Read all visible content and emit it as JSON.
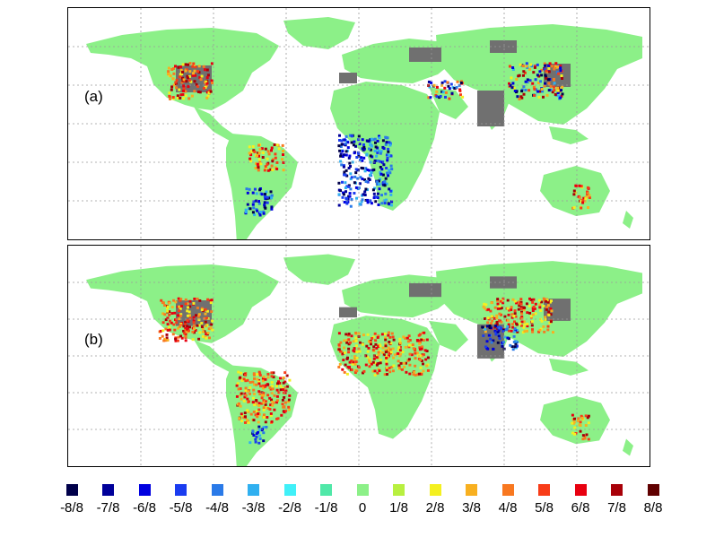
{
  "panels": [
    {
      "id": "a",
      "label": "(a)"
    },
    {
      "id": "b",
      "label": "(b)"
    }
  ],
  "legend": {
    "items": [
      {
        "label": "-8/8",
        "color": "#00004a"
      },
      {
        "label": "-7/8",
        "color": "#00009a"
      },
      {
        "label": "-6/8",
        "color": "#0000e0"
      },
      {
        "label": "-5/8",
        "color": "#1a3cf0"
      },
      {
        "label": "-4/8",
        "color": "#2a7ae8"
      },
      {
        "label": "-3/8",
        "color": "#30b0f0"
      },
      {
        "label": "-2/8",
        "color": "#40f0f8"
      },
      {
        "label": "-1/8",
        "color": "#50e8a8"
      },
      {
        "label": "0",
        "color": "#8cf088"
      },
      {
        "label": "1/8",
        "color": "#b8f040"
      },
      {
        "label": "2/8",
        "color": "#f4f020"
      },
      {
        "label": "3/8",
        "color": "#f8b020"
      },
      {
        "label": "4/8",
        "color": "#f87820"
      },
      {
        "label": "5/8",
        "color": "#f83c18"
      },
      {
        "label": "6/8",
        "color": "#e80010"
      },
      {
        "label": "7/8",
        "color": "#a80008"
      },
      {
        "label": "8/8",
        "color": "#600000"
      }
    ]
  },
  "colors": {
    "land": "#8cf088",
    "nodata": "#707070",
    "grid": "#9a9a9a"
  }
}
